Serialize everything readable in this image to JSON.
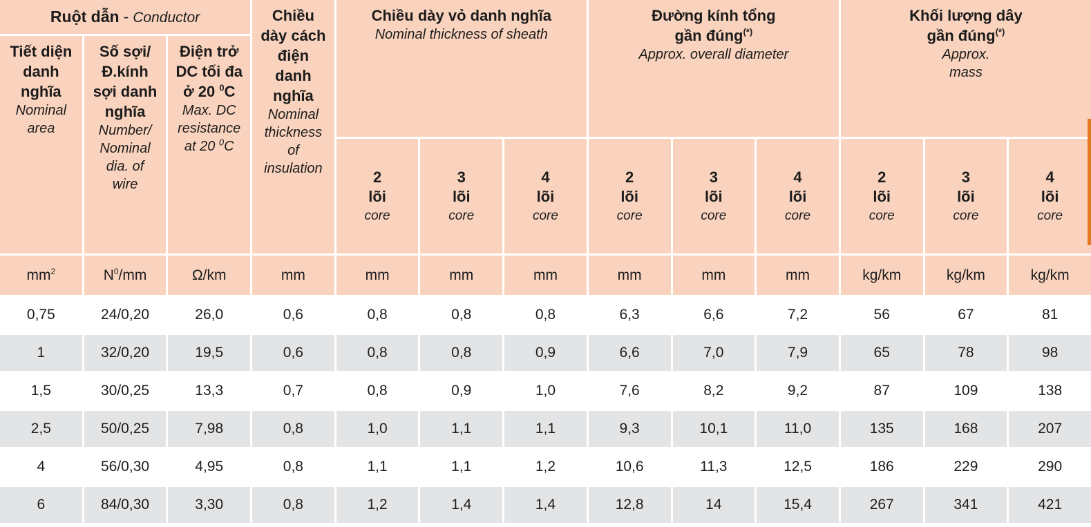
{
  "colors": {
    "header_bg": "#fad3be",
    "row_stripe": "#e3e4e6",
    "edge_bar": "#e1791e",
    "text": "#1c1c1c"
  },
  "table": {
    "conductor_group": {
      "vi": "Ruột dẫn",
      "sep": "-",
      "en": "Conductor"
    },
    "columns": {
      "nominal_area": {
        "vi_html": "Tiết diện<br>danh<br>nghĩa",
        "en_html": "Nominal<br>area"
      },
      "number_dia": {
        "vi_html": "Số sợi/<br>Đ.kính<br>sợi danh<br>nghĩa",
        "en_html": "Number/<br>Nominal<br>dia. of<br>wire"
      },
      "dc_resistance": {
        "vi_html": "Điện trở<br>DC tối đa<br>ở 20 <sup>0</sup>C",
        "en_html": "Max. DC<br>resistance<br>at 20 <sup>0</sup>C"
      },
      "insulation": {
        "vi_html": "Chiều<br>dày cách<br>điện<br>danh<br>nghĩa",
        "en_html": "Nominal<br>thickness<br>of<br>insulation"
      }
    },
    "groups": {
      "sheath": {
        "vi_html": "Chiều dày vỏ danh nghĩa",
        "en_html": "Nominal thickness of sheath"
      },
      "diameter": {
        "vi_html": "Đường kính tổng<br>gần đúng<sup>(*)</sup>",
        "en_html": "Approx. overall diameter"
      },
      "mass": {
        "vi_html": "Khối lượng dây<br>gần đúng<sup>(*)</sup>",
        "en_html": "Approx.<br>mass"
      }
    },
    "core_headers": [
      {
        "n": "2",
        "loi": "lõi",
        "core": "core"
      },
      {
        "n": "3",
        "loi": "lõi",
        "core": "core"
      },
      {
        "n": "4",
        "loi": "lõi",
        "core": "core"
      }
    ],
    "units": [
      "mm<sup>2</sup>",
      "N<sup>0</sup>/mm",
      "Ω/km",
      "mm",
      "mm",
      "mm",
      "mm",
      "mm",
      "mm",
      "mm",
      "kg/km",
      "kg/km",
      "kg/km"
    ],
    "rows": [
      [
        "0,75",
        "24/0,20",
        "26,0",
        "0,6",
        "0,8",
        "0,8",
        "0,8",
        "6,3",
        "6,6",
        "7,2",
        "56",
        "67",
        "81"
      ],
      [
        "1",
        "32/0,20",
        "19,5",
        "0,6",
        "0,8",
        "0,8",
        "0,9",
        "6,6",
        "7,0",
        "7,9",
        "65",
        "78",
        "98"
      ],
      [
        "1,5",
        "30/0,25",
        "13,3",
        "0,7",
        "0,8",
        "0,9",
        "1,0",
        "7,6",
        "8,2",
        "9,2",
        "87",
        "109",
        "138"
      ],
      [
        "2,5",
        "50/0,25",
        "7,98",
        "0,8",
        "1,0",
        "1,1",
        "1,1",
        "9,3",
        "10,1",
        "11,0",
        "135",
        "168",
        "207"
      ],
      [
        "4",
        "56/0,30",
        "4,95",
        "0,8",
        "1,1",
        "1,1",
        "1,2",
        "10,6",
        "11,3",
        "12,5",
        "186",
        "229",
        "290"
      ],
      [
        "6",
        "84/0,30",
        "3,30",
        "0,8",
        "1,2",
        "1,4",
        "1,4",
        "12,8",
        "14",
        "15,4",
        "267",
        "341",
        "421"
      ]
    ]
  }
}
